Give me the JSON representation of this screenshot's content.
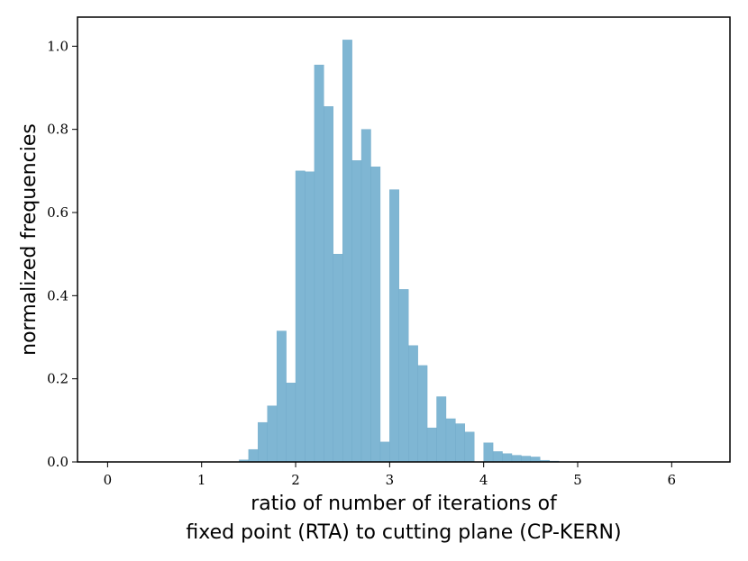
{
  "chart_data": {
    "type": "bar",
    "title": "",
    "xlabel_line1": "ratio of number of iterations of",
    "xlabel_line2": "fixed point (RTA) to cutting plane (CP-KERN)",
    "ylabel": "normalized frequencies",
    "xlim": [
      -0.32,
      6.62
    ],
    "ylim": [
      0,
      1.07
    ],
    "xticks": [
      0,
      1,
      2,
      3,
      4,
      5,
      6
    ],
    "xtick_labels": [
      "0",
      "1",
      "2",
      "3",
      "4",
      "5",
      "6"
    ],
    "yticks": [
      0,
      0.2,
      0.4,
      0.6,
      0.8,
      1.0
    ],
    "ytick_labels": [
      "0.0",
      "0.2",
      "0.4",
      "0.6",
      "0.8",
      "1.0"
    ],
    "grid": false,
    "legend": "none",
    "bar_color": "#7fb6d3",
    "bin_edges": [
      1.4,
      1.5,
      1.6,
      1.7,
      1.8,
      1.9,
      2.0,
      2.1,
      2.2,
      2.3,
      2.4,
      2.5,
      2.6,
      2.7,
      2.8,
      2.9,
      3.0,
      3.1,
      3.2,
      3.3,
      3.4,
      3.5,
      3.6,
      3.7,
      3.8,
      3.9,
      4.0,
      4.1,
      4.2,
      4.3,
      4.4,
      4.5,
      4.6,
      4.7,
      4.8
    ],
    "values": [
      0.005,
      0.03,
      0.095,
      0.135,
      0.315,
      0.19,
      0.7,
      0.698,
      0.955,
      0.855,
      0.5,
      1.015,
      0.725,
      0.8,
      0.71,
      0.048,
      0.655,
      0.415,
      0.28,
      0.232,
      0.082,
      0.157,
      0.104,
      0.092,
      0.072,
      0.0,
      0.046,
      0.025,
      0.02,
      0.016,
      0.014,
      0.012,
      0.004,
      0.002
    ]
  }
}
